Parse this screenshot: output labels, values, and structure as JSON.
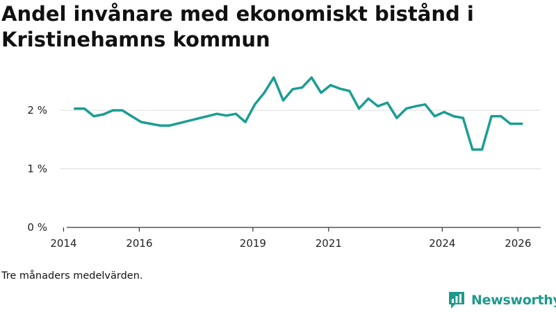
{
  "title": "Andel invånare med ekonomiskt bistånd i Kristinehamns kommun",
  "note": "Tre månaders medelvärden.",
  "brand": {
    "name": "Newsworthy",
    "icon": "newsworthy-logo-icon"
  },
  "colors": {
    "line": "#1a9e92",
    "grid": "#dddddd",
    "axis": "#333333",
    "brand": "#1e9a8c"
  },
  "chart_data": {
    "type": "line",
    "title": "Andel invånare med ekonomiskt bistånd i Kristinehamns kommun",
    "xlabel": "",
    "ylabel": "",
    "ylim": [
      0,
      2.7
    ],
    "xlim": [
      2013.9,
      2026.6
    ],
    "grid": true,
    "x_ticks": [
      {
        "value": 2014,
        "label": "2014"
      },
      {
        "value": 2016,
        "label": "2016"
      },
      {
        "value": 2019,
        "label": "2019"
      },
      {
        "value": 2021,
        "label": "2021"
      },
      {
        "value": 2024,
        "label": "2024"
      },
      {
        "value": 2026,
        "label": "2026"
      }
    ],
    "y_ticks": [
      {
        "value": 0,
        "label": "0 %"
      },
      {
        "value": 1,
        "label": "1 %"
      },
      {
        "value": 2,
        "label": "2 %"
      }
    ],
    "series": [
      {
        "name": "Andel invånare med ekonomiskt bistånd",
        "x": [
          2014.3,
          2014.55,
          2014.8,
          2015.05,
          2015.3,
          2015.55,
          2015.8,
          2016.05,
          2016.3,
          2016.55,
          2016.8,
          2017.05,
          2017.3,
          2017.55,
          2017.8,
          2018.05,
          2018.3,
          2018.55,
          2018.8,
          2019.05,
          2019.3,
          2019.55,
          2019.8,
          2020.05,
          2020.3,
          2020.55,
          2020.8,
          2021.05,
          2021.3,
          2021.55,
          2021.8,
          2022.05,
          2022.3,
          2022.55,
          2022.8,
          2023.05,
          2023.3,
          2023.55,
          2023.8,
          2024.05,
          2024.3,
          2024.55,
          2024.8,
          2025.05,
          2025.3,
          2025.55,
          2025.8,
          2026.1
        ],
        "values": [
          2.03,
          2.03,
          1.9,
          1.93,
          2.0,
          2.0,
          1.9,
          1.8,
          1.77,
          1.74,
          1.74,
          1.78,
          1.82,
          1.86,
          1.9,
          1.94,
          1.91,
          1.94,
          1.8,
          2.1,
          2.3,
          2.56,
          2.17,
          2.36,
          2.39,
          2.56,
          2.3,
          2.43,
          2.37,
          2.33,
          2.03,
          2.2,
          2.07,
          2.13,
          1.87,
          2.03,
          2.07,
          2.1,
          1.9,
          1.97,
          1.9,
          1.87,
          1.33,
          1.33,
          1.9,
          1.9,
          1.77,
          1.77
        ]
      }
    ]
  }
}
